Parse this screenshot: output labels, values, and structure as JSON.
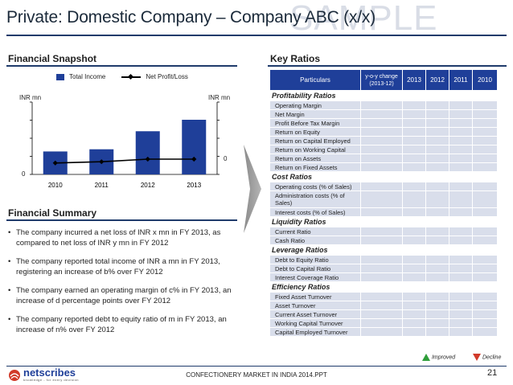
{
  "slide": {
    "title": "Private: Domestic Company – Company ABC (x/x)",
    "watermark": "SAMPLE"
  },
  "snapshot": {
    "heading": "Financial Snapshot",
    "legend_bar": "Total Income",
    "legend_line": "Net Profit/Loss",
    "left_axis_label": "INR mn",
    "right_axis_label": "INR mn",
    "left_axis_zero": "0",
    "right_axis_zero": "0",
    "bar_color": "#1f3f99",
    "line_color": "#000000"
  },
  "chart_data": {
    "type": "bar",
    "categories": [
      "2010",
      "2011",
      "2012",
      "2013"
    ],
    "series": [
      {
        "name": "Total Income",
        "type": "bar",
        "values": [
          0.42,
          0.46,
          0.79,
          1.0
        ]
      },
      {
        "name": "Net Profit/Loss",
        "type": "line",
        "values": [
          -0.12,
          -0.08,
          0.0,
          0.0
        ]
      }
    ],
    "ylabel": "INR mn",
    "y2label": "INR mn",
    "note": "values are relative (no numeric tick labels shown)"
  },
  "summary": {
    "heading": "Financial Summary",
    "items": [
      "The company incurred a net loss of INR x mn in FY 2013, as compared to net loss of INR y mn in FY 2012",
      "The company reported total income of INR a mn in FY 2013, registering an increase of b% over FY 2012",
      "The company earned an operating margin of c% in FY 2013, an increase of d percentage points over FY 2012",
      "The company reported debt to equity ratio of m in FY 2013, an increase of n% over FY 2012"
    ]
  },
  "ratios": {
    "heading": "Key Ratios",
    "columns": [
      "Particulars",
      "y-o-y change (2013-12)",
      "2013",
      "2012",
      "2011",
      "2010"
    ],
    "groups": [
      {
        "name": "Profitability Ratios",
        "rows": [
          "Operating Margin",
          "Net Margin",
          "Profit Before Tax Margin",
          "Return on Equity",
          "Return on Capital Employed",
          "Return on Working Capital",
          "Return on Assets",
          "Return on Fixed Assets"
        ]
      },
      {
        "name": "Cost Ratios",
        "rows": [
          "Operating costs (% of Sales)",
          "Administration costs (% of Sales)",
          "Interest costs (% of Sales)"
        ]
      },
      {
        "name": "Liquidity Ratios",
        "rows": [
          "Current Ratio",
          "Cash Ratio"
        ]
      },
      {
        "name": "Leverage Ratios",
        "rows": [
          "Debt to Equity Ratio",
          "Debt to Capital Ratio",
          "Interest Coverage Ratio"
        ]
      },
      {
        "name": "Efficiency Ratios",
        "rows": [
          "Fixed Asset Turnover",
          "Asset Turnover",
          "Current Asset Turnover",
          "Working Capital Turnover",
          "Capital Employed Turnover"
        ]
      }
    ],
    "legend_improved": "Improved",
    "legend_decline": "Decline",
    "header_color": "#1f3f99",
    "cell_color": "#d9deeb"
  },
  "footer": {
    "logo": "netscribes",
    "logo_tagline": "knowledge - for every decision",
    "center_text": "CONFECTIONERY MARKET IN INDIA 2014.PPT",
    "page_number": "21"
  }
}
